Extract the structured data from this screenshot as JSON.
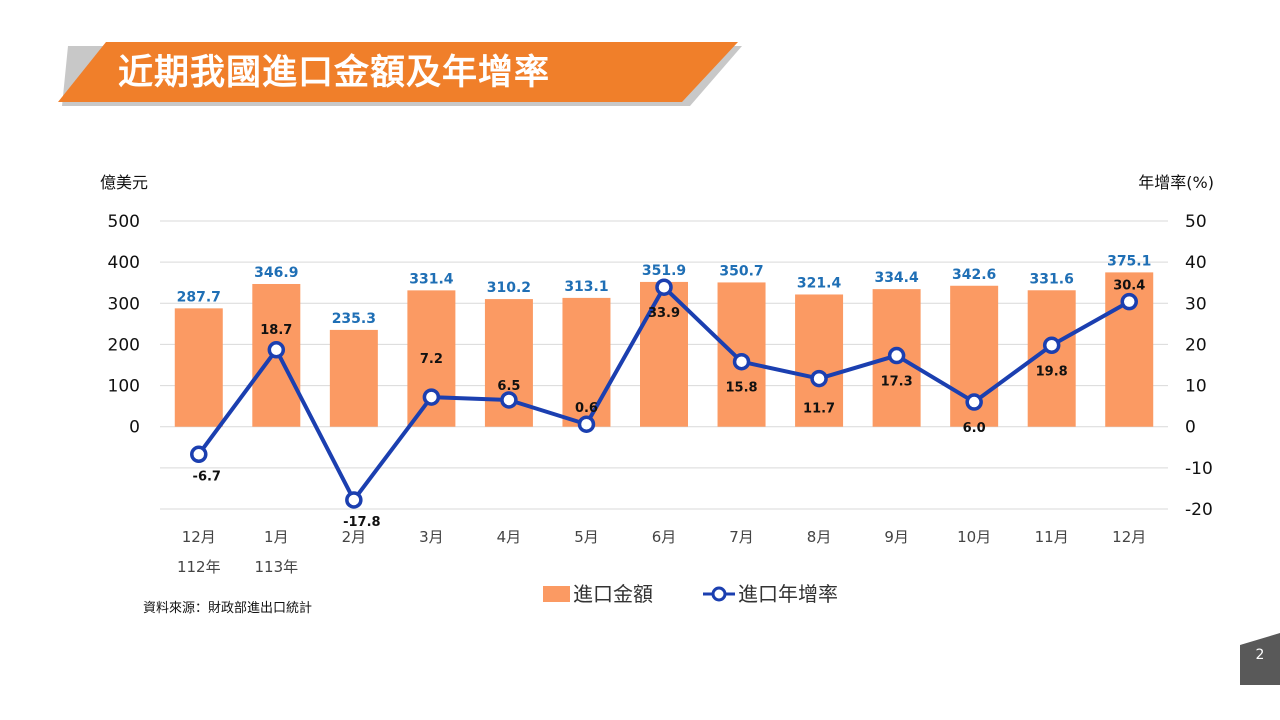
{
  "slide": {
    "title": "近期我國進口金額及年增率",
    "source": "資料來源：財政部進出口統計",
    "page_number": "2",
    "colors": {
      "banner": "#f07f2a",
      "banner_shadow": "#c8c8c8",
      "bar": "#fb9a63",
      "line": "#1b3fb0",
      "bar_label": "#1f6fb5",
      "page_box": "#595959"
    }
  },
  "chart_data": {
    "type": "bar",
    "categories": [
      "12月",
      "1月",
      "2月",
      "3月",
      "4月",
      "5月",
      "6月",
      "7月",
      "8月",
      "9月",
      "10月",
      "11月",
      "12月"
    ],
    "category_sublabels": [
      "112年",
      "113年",
      "",
      "",
      "",
      "",
      "",
      "",
      "",
      "",
      "",
      "",
      ""
    ],
    "series": [
      {
        "name": "進口金額",
        "type": "bar",
        "axis": "left",
        "values": [
          287.7,
          346.9,
          235.3,
          331.4,
          310.2,
          313.1,
          351.9,
          350.7,
          321.4,
          334.4,
          342.6,
          331.6,
          375.1
        ],
        "labels": [
          "287.7",
          "346.9",
          "235.3",
          "331.4",
          "310.2",
          "313.1",
          "351.9",
          "350.7",
          "321.4",
          "334.4",
          "342.6",
          "331.6",
          "375.1"
        ]
      },
      {
        "name": "進口年增率",
        "type": "line",
        "axis": "right",
        "values": [
          -6.7,
          18.7,
          -17.8,
          7.2,
          6.5,
          0.6,
          33.9,
          15.8,
          11.7,
          17.3,
          6.0,
          19.8,
          30.4
        ],
        "labels": [
          "-6.7",
          "18.7",
          "-17.8",
          "7.2",
          "6.5",
          "0.6",
          "33.9",
          "15.8",
          "11.7",
          "17.3",
          "6.0",
          "19.8",
          "30.4"
        ]
      }
    ],
    "y_left": {
      "label": "億美元",
      "ticks": [
        "500",
        "400",
        "300",
        "200",
        "100",
        "0"
      ],
      "ylim": [
        -200,
        500
      ]
    },
    "y_right": {
      "label": "年增率(%)",
      "ticks": [
        "50",
        "40",
        "30",
        "20",
        "10",
        "0",
        "-10",
        "-20"
      ],
      "ylim": [
        -20,
        50
      ]
    },
    "grid": true,
    "legend_position": "bottom"
  }
}
